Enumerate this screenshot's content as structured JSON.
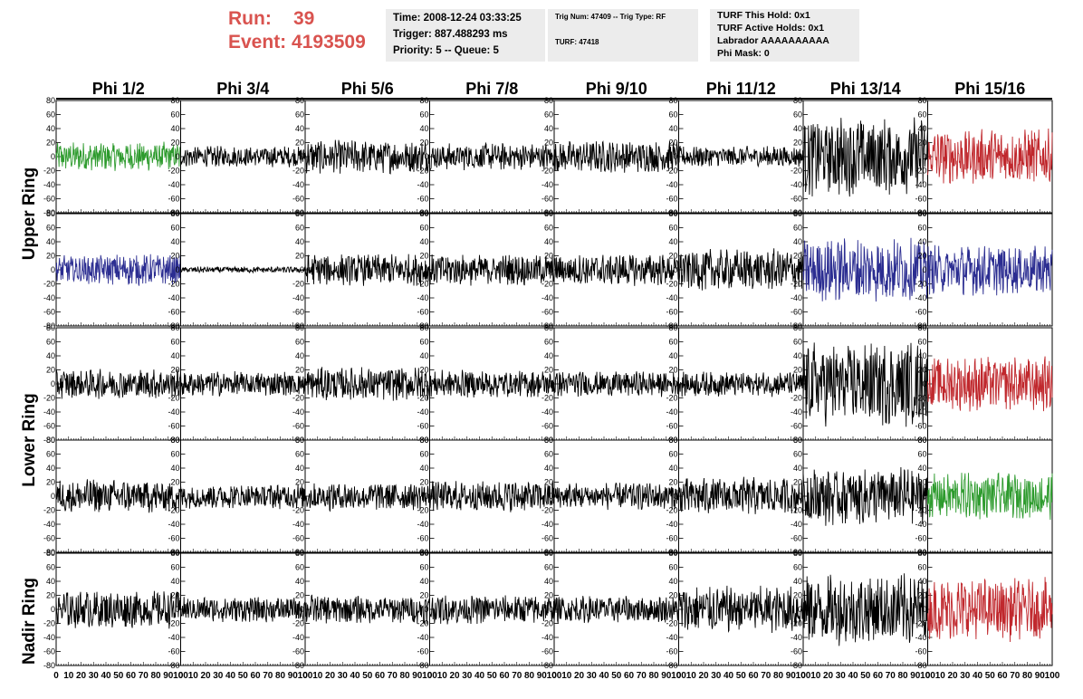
{
  "header": {
    "run_label": "Run:",
    "run_value": "39",
    "event_label": "Event:",
    "event_value": "4193509",
    "time": "Time: 2008-12-24 03:33:25",
    "trigger": "Trigger: 887.488293 ms",
    "priority": "Priority: 5 -- Queue: 5",
    "trig_num": "Trig Num: 47409 -- Trig Type: RF",
    "turf": "TURF: 47418",
    "turf_this_hold": "TURF This Hold: 0x1",
    "turf_active_holds": "TURF Active Holds: 0x1",
    "labrador": "Labrador AAAAAAAAAA",
    "phi_mask": "Phi Mask: 0"
  },
  "chart_data": {
    "type": "line",
    "columns": [
      "Phi 1/2",
      "Phi 3/4",
      "Phi 5/6",
      "Phi 7/8",
      "Phi 9/10",
      "Phi 11/12",
      "Phi 13/14",
      "Phi 15/16"
    ],
    "ring_labels": [
      "Upper Ring",
      "Lower Ring",
      "Nadir Ring"
    ],
    "y_ticks": [
      -80,
      -60,
      -40,
      -20,
      0,
      20,
      40,
      60,
      80
    ],
    "ylim": [
      -80,
      80
    ],
    "x_ticks": [
      0,
      10,
      20,
      30,
      40,
      50,
      60,
      70,
      80,
      90,
      100
    ],
    "xlim": [
      0,
      100
    ],
    "colors": {
      "green": "#2e9b2e",
      "blue": "#2b2d91",
      "red": "#c0282d",
      "black": "#000000"
    },
    "traces": [
      [
        {
          "color": "green",
          "amplitude": 14
        },
        {
          "color": "black",
          "amplitude": 10
        },
        {
          "color": "black",
          "amplitude": 16
        },
        {
          "color": "black",
          "amplitude": 13
        },
        {
          "color": "black",
          "amplitude": 15
        },
        {
          "color": "black",
          "amplitude": 10
        },
        {
          "color": "black",
          "amplitude": 38
        },
        {
          "color": "red",
          "amplitude": 26
        }
      ],
      [
        {
          "color": "blue",
          "amplitude": 15
        },
        {
          "color": "black",
          "amplitude": 3
        },
        {
          "color": "black",
          "amplitude": 15
        },
        {
          "color": "black",
          "amplitude": 15
        },
        {
          "color": "black",
          "amplitude": 15
        },
        {
          "color": "black",
          "amplitude": 20
        },
        {
          "color": "blue",
          "amplitude": 30
        },
        {
          "color": "blue",
          "amplitude": 24
        }
      ],
      [
        {
          "color": "black",
          "amplitude": 14
        },
        {
          "color": "black",
          "amplitude": 12
        },
        {
          "color": "black",
          "amplitude": 16
        },
        {
          "color": "black",
          "amplitude": 13
        },
        {
          "color": "black",
          "amplitude": 12
        },
        {
          "color": "black",
          "amplitude": 12
        },
        {
          "color": "black",
          "amplitude": 40
        },
        {
          "color": "red",
          "amplitude": 26
        }
      ],
      [
        {
          "color": "black",
          "amplitude": 16
        },
        {
          "color": "black",
          "amplitude": 12
        },
        {
          "color": "black",
          "amplitude": 14
        },
        {
          "color": "black",
          "amplitude": 15
        },
        {
          "color": "black",
          "amplitude": 13
        },
        {
          "color": "black",
          "amplitude": 18
        },
        {
          "color": "black",
          "amplitude": 28
        },
        {
          "color": "green",
          "amplitude": 22
        }
      ],
      [
        {
          "color": "black",
          "amplitude": 18
        },
        {
          "color": "black",
          "amplitude": 12
        },
        {
          "color": "black",
          "amplitude": 14
        },
        {
          "color": "black",
          "amplitude": 14
        },
        {
          "color": "black",
          "amplitude": 13
        },
        {
          "color": "black",
          "amplitude": 22
        },
        {
          "color": "black",
          "amplitude": 34
        },
        {
          "color": "red",
          "amplitude": 30
        }
      ]
    ]
  }
}
